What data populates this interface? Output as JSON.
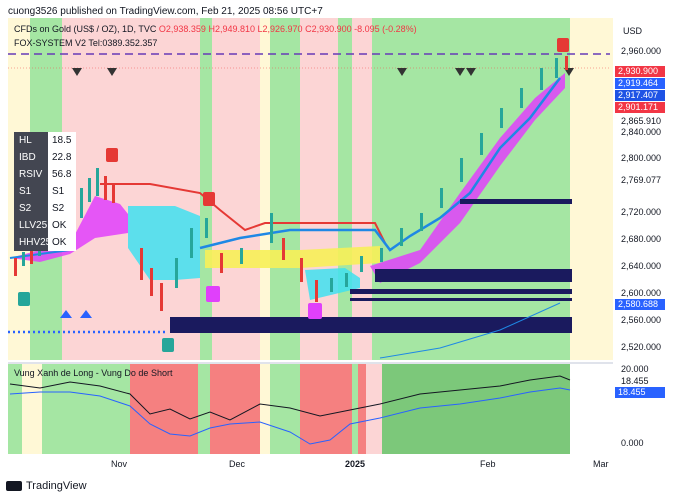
{
  "header": "cuong3526 published on TradingView.com, Feb 21, 2025 08:56 UTC+7",
  "symbol": {
    "name": "CFDs on Gold (US$ / OZ), 1D, TVC",
    "open_label": "O2,938.359",
    "high_label": "H2,949.810",
    "low_label": "L2,926.970",
    "close_label": "C2,930.900",
    "change_label": "-8.095 (-0.28%)"
  },
  "indicator_title": "FOX-SYSTEM V2 Tel:0389.352.357",
  "currency": "USD",
  "price_axis": [
    "2,960.000",
    "2,865.910",
    "2,840.000",
    "2,800.000",
    "2,769.077",
    "2,720.000",
    "2,680.000",
    "2,640.000",
    "2,600.000",
    "2,560.000",
    "2,520.000"
  ],
  "price_tags": [
    {
      "text": "2,930.900",
      "color": "#f23645"
    },
    {
      "text": "2,919.464",
      "color": "#2962ff"
    },
    {
      "text": "2,917.407",
      "color": "#1e53e5"
    },
    {
      "text": "2,901.171",
      "color": "#f23645"
    },
    {
      "text": "2,580.688",
      "color": "#2962ff"
    }
  ],
  "table": [
    {
      "k": "HL",
      "v": "18.5"
    },
    {
      "k": "IBD",
      "v": "22.8"
    },
    {
      "k": "RSIV",
      "v": "56.8"
    },
    {
      "k": "S1",
      "v": "S1"
    },
    {
      "k": "S2",
      "v": "S2"
    },
    {
      "k": "LLV25",
      "v": "OK"
    },
    {
      "k": "HHV25",
      "v": "OK"
    }
  ],
  "sub_indicator": {
    "title": "Vung Xanh de Long - Vung Do de Short",
    "axis": [
      "20.000",
      "18.455",
      "0.000"
    ],
    "value_tag": "18.455"
  },
  "time_axis": [
    "Nov",
    "Dec",
    "2025",
    "Feb",
    "Mar"
  ],
  "footer": "TradingView",
  "colors": {
    "bull_zone": "#a5e6a3",
    "bear_zone": "#f7d6d6",
    "cloud_up": "#e040fb",
    "cloud_down": "#00e5ff",
    "line_red": "#e53935",
    "line_blue": "#1e88e5",
    "dark_box": "#1a1a5e"
  }
}
